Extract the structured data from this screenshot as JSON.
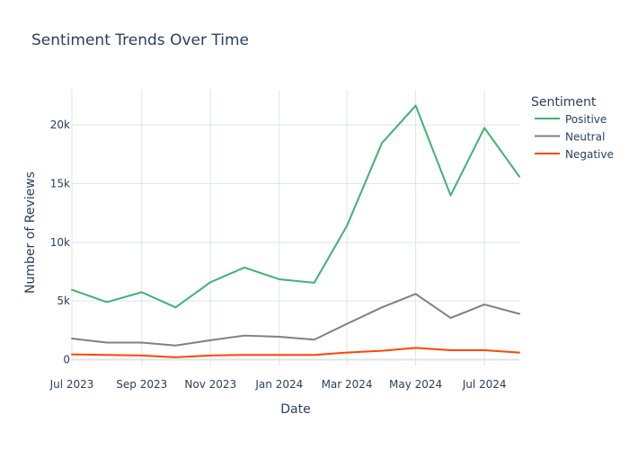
{
  "chart_data": {
    "type": "line",
    "title": "Sentiment Trends Over Time",
    "xlabel": "Date",
    "ylabel": "Number of Reviews",
    "x": [
      "2023-07-01",
      "2023-08-01",
      "2023-09-01",
      "2023-10-01",
      "2023-11-01",
      "2023-12-01",
      "2024-01-01",
      "2024-02-01",
      "2024-03-01",
      "2024-04-01",
      "2024-05-01",
      "2024-06-01",
      "2024-07-01",
      "2024-08-01"
    ],
    "xlim": [
      "2023-07-01",
      "2024-08-01"
    ],
    "ylim": [
      -500,
      23000
    ],
    "x_ticks": [
      {
        "value": "2023-07-01",
        "label": "Jul 2023"
      },
      {
        "value": "2023-09-01",
        "label": "Sep 2023"
      },
      {
        "value": "2023-11-01",
        "label": "Nov 2023"
      },
      {
        "value": "2024-01-01",
        "label": "Jan 2024"
      },
      {
        "value": "2024-03-01",
        "label": "Mar 2024"
      },
      {
        "value": "2024-05-01",
        "label": "May 2024"
      },
      {
        "value": "2024-07-01",
        "label": "Jul 2024"
      }
    ],
    "y_ticks": [
      {
        "value": 0,
        "label": "0"
      },
      {
        "value": 5000,
        "label": "5k"
      },
      {
        "value": 10000,
        "label": "10k"
      },
      {
        "value": 15000,
        "label": "15k"
      },
      {
        "value": 20000,
        "label": "20k"
      }
    ],
    "grid": true,
    "legend": {
      "title": "Sentiment",
      "placement": "top-right"
    },
    "series": [
      {
        "name": "Positive",
        "color": "#3cb371",
        "values": [
          5950,
          4900,
          5750,
          4450,
          6600,
          7850,
          6850,
          6550,
          11400,
          18450,
          21650,
          14000,
          19750,
          15600
        ]
      },
      {
        "name": "Neutral",
        "color": "#808080",
        "values": [
          1800,
          1450,
          1450,
          1200,
          1650,
          2050,
          1950,
          1700,
          3050,
          4450,
          5600,
          3550,
          4700,
          3900
        ]
      },
      {
        "name": "Negative",
        "color": "#ff4500",
        "values": [
          450,
          400,
          350,
          200,
          350,
          400,
          400,
          400,
          600,
          750,
          1000,
          800,
          800,
          600
        ]
      }
    ]
  }
}
